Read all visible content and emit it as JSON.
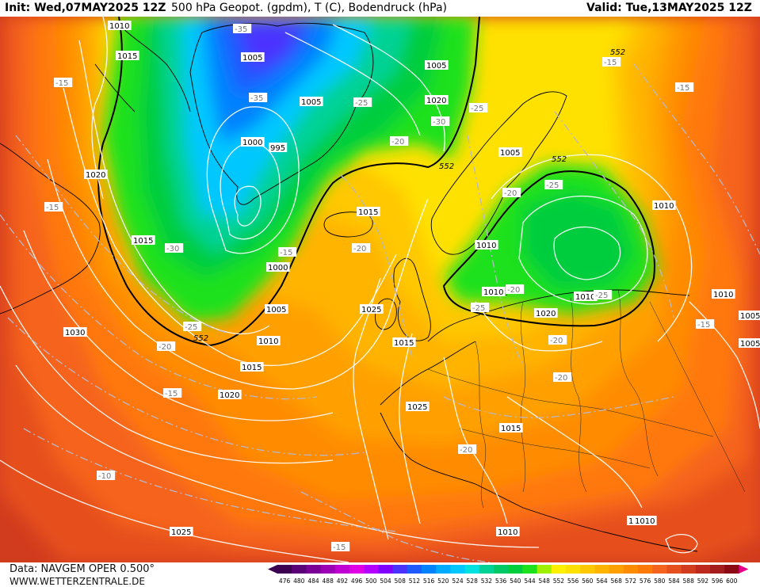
{
  "header": {
    "init": "Init: Wed,07MAY2025 12Z",
    "title": "500 hPa Geopot. (gpdm), T (C), Bodendruck (hPa)",
    "valid": "Valid: Tue,13MAY2025 12Z"
  },
  "footer": {
    "model": "Data: NAVGEM OPER 0.500°",
    "site": "WWW.WETTERZENTRALE.DE"
  },
  "legend": {
    "ticks": [
      "476",
      "480",
      "484",
      "488",
      "492",
      "496",
      "500",
      "504",
      "508",
      "512",
      "516",
      "520",
      "524",
      "528",
      "532",
      "536",
      "540",
      "544",
      "548",
      "552",
      "556",
      "560",
      "564",
      "568",
      "572",
      "576",
      "580",
      "584",
      "588",
      "592",
      "596",
      "600"
    ],
    "colors": [
      "#3c0050",
      "#5a0078",
      "#7a0096",
      "#9c00b4",
      "#c000d2",
      "#e000e6",
      "#b400ff",
      "#8000ff",
      "#4b32ff",
      "#1e5aff",
      "#0082ff",
      "#00aaff",
      "#00c8ff",
      "#00e1e1",
      "#00d296",
      "#00c864",
      "#00cd3c",
      "#1ee11e",
      "#9ef000",
      "#fff000",
      "#ffe100",
      "#ffc800",
      "#ffb400",
      "#ffa000",
      "#ff8c00",
      "#ff780a",
      "#f5641e",
      "#e6501e",
      "#d23c1e",
      "#be281e",
      "#a51e1e",
      "#8c0a14"
    ],
    "arrow_left_color": "#3c0050",
    "arrow_right_color": "#e6008c"
  },
  "map": {
    "geopot_label_552": "552",
    "pressure_labels": [
      "1010",
      "1015",
      "1005",
      "1005",
      "1005",
      "1000",
      "995",
      "1020",
      "1015",
      "1015",
      "1000",
      "1005",
      "1010",
      "1015",
      "1030",
      "1020",
      "1025",
      "1005",
      "1010",
      "1020",
      "1015",
      "1025",
      "1010",
      "1015",
      "1020",
      "1010",
      "1010",
      "1010",
      "1005",
      "1005",
      "1005",
      "1010",
      "1025",
      "1010"
    ],
    "temp_labels": [
      "-35",
      "-35",
      "-25",
      "-30",
      "-20",
      "-15",
      "-15",
      "-30",
      "-25",
      "-20",
      "-15",
      "-20",
      "-15",
      "-20",
      "-25",
      "-25",
      "-20",
      "-25",
      "-15",
      "-25",
      "-20",
      "-20",
      "-15",
      "-15",
      "-10",
      "-20",
      "-15"
    ]
  }
}
